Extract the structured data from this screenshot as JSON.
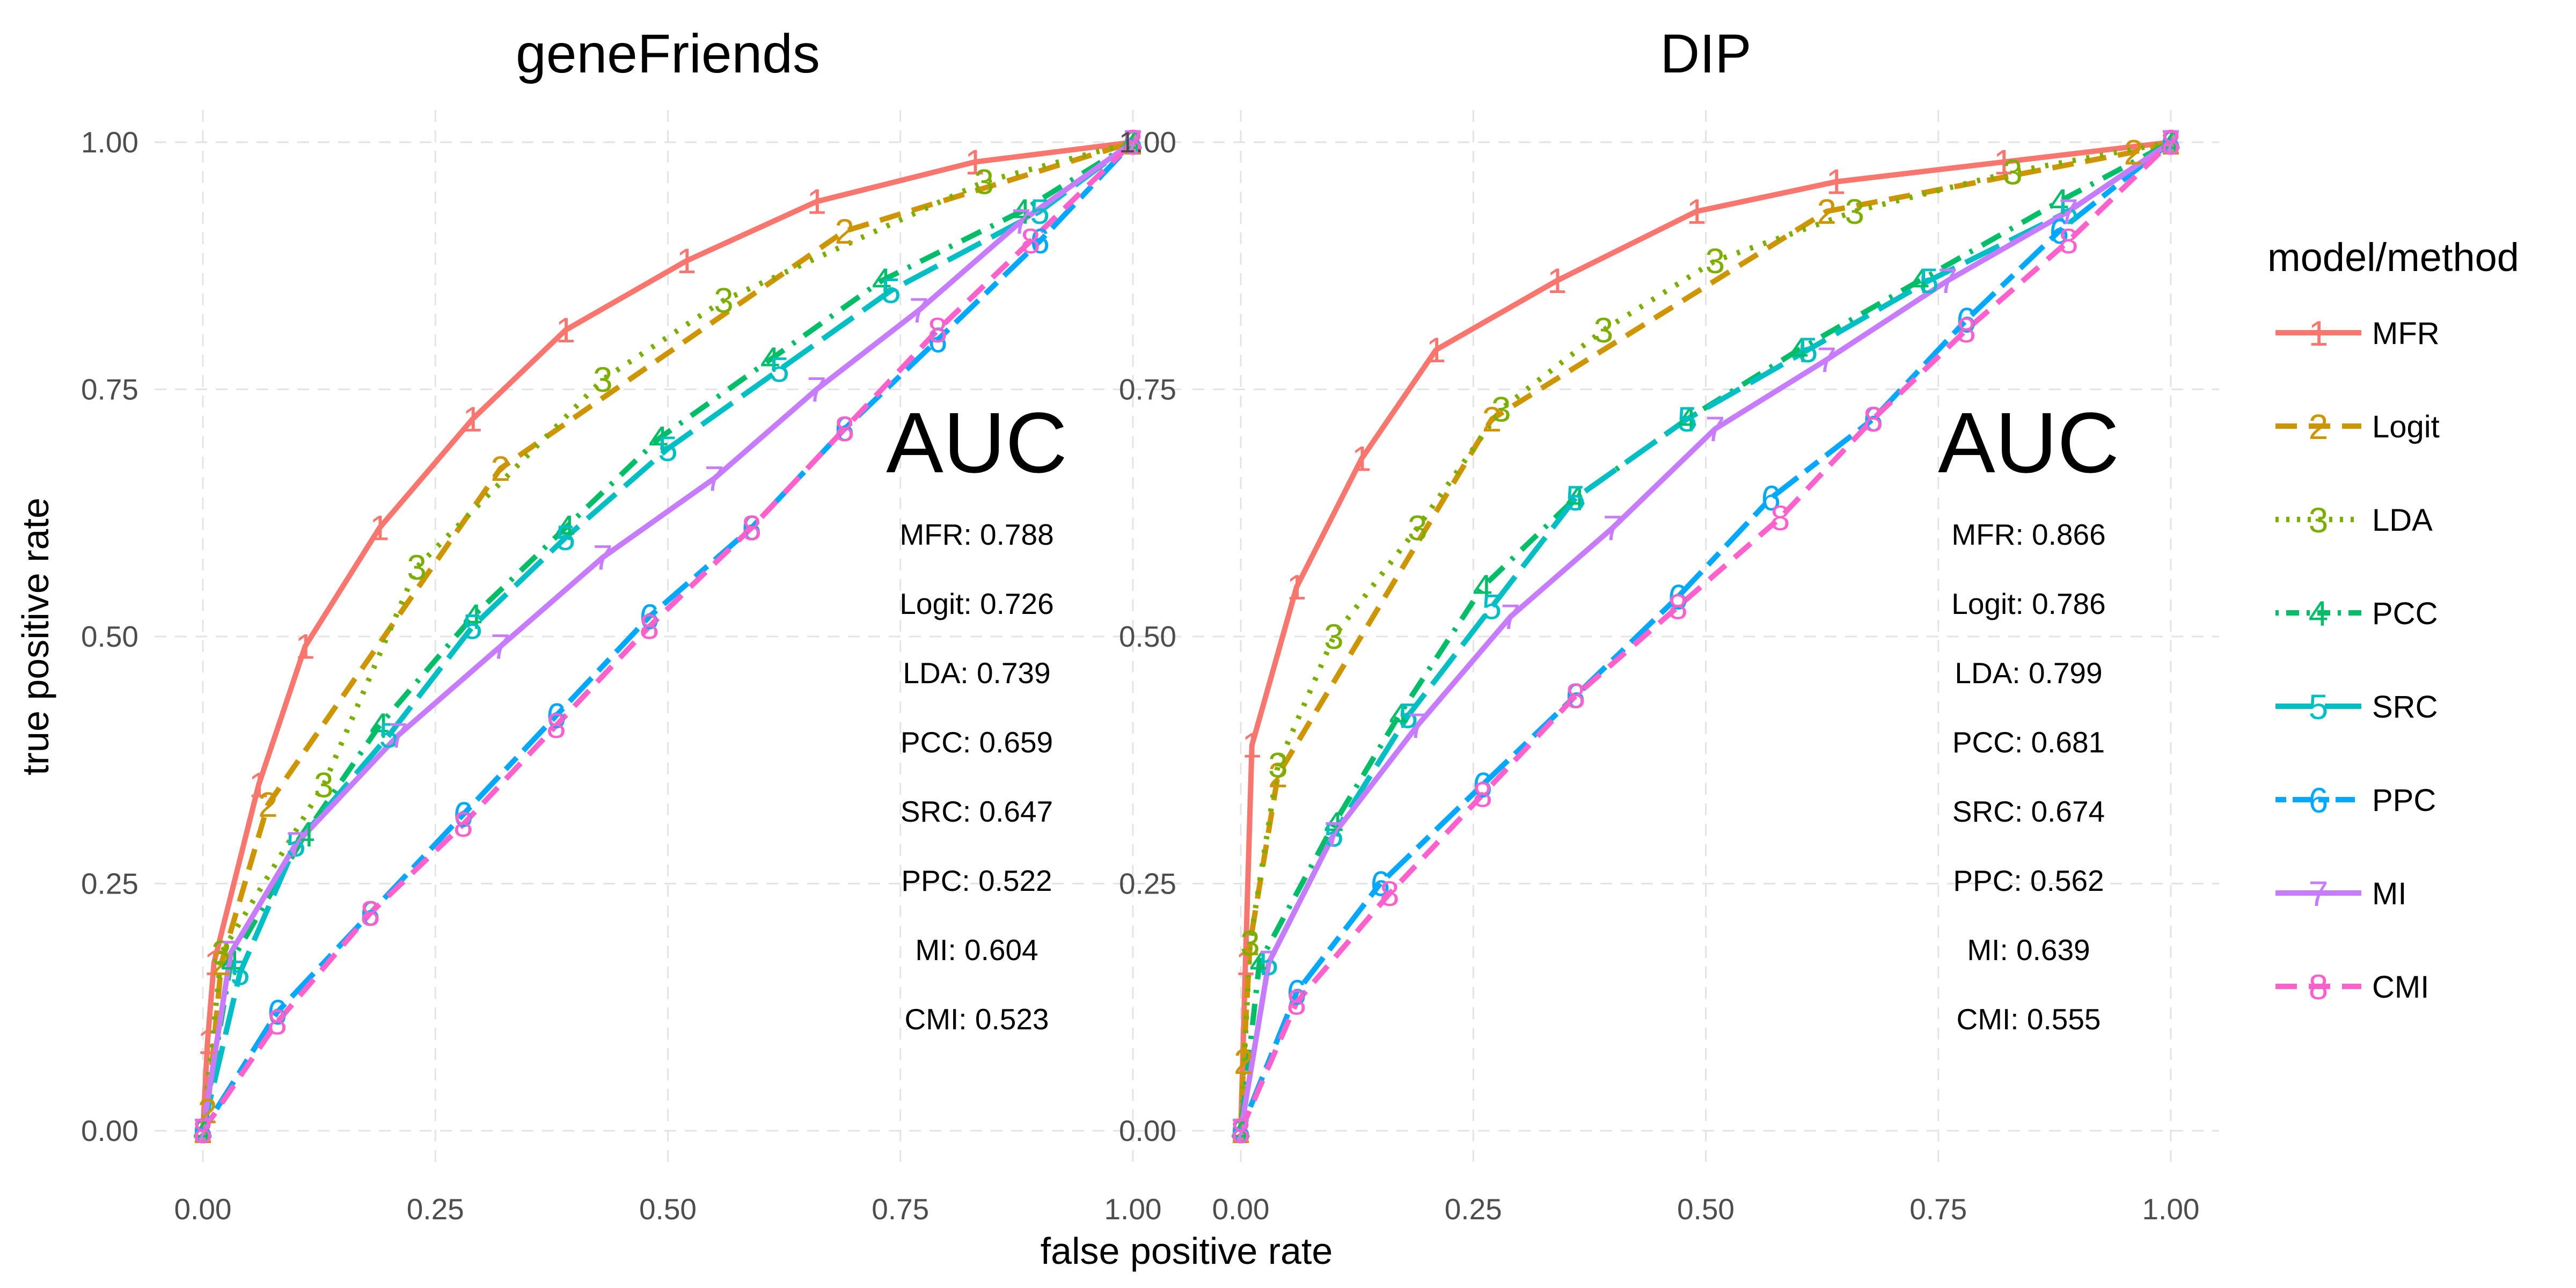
{
  "chart_data": {
    "type": "line",
    "xlabel": "false positive rate",
    "ylabel": "true positive rate",
    "xlim": [
      0,
      1
    ],
    "ylim": [
      0,
      1
    ],
    "x_ticks": [
      "0.00",
      "0.25",
      "0.50",
      "0.75",
      "1.00"
    ],
    "y_ticks": [
      "0.00",
      "0.25",
      "0.50",
      "0.75",
      "1.00"
    ],
    "grid": true,
    "legend": {
      "title": "model/method",
      "position": "right",
      "entries": [
        {
          "symbol": "1",
          "label": "MFR",
          "color": "#F8766D",
          "dash": "solid"
        },
        {
          "symbol": "2",
          "label": "Logit",
          "color": "#CD9600",
          "dash": "dashed"
        },
        {
          "symbol": "3",
          "label": "LDA",
          "color": "#7CAE00",
          "dash": "dotted"
        },
        {
          "symbol": "4",
          "label": "PCC",
          "color": "#00BE67",
          "dash": "dotdash"
        },
        {
          "symbol": "5",
          "label": "SRC",
          "color": "#00BFC4",
          "dash": "longdash"
        },
        {
          "symbol": "6",
          "label": "PPC",
          "color": "#00A9FF",
          "dash": "twodash"
        },
        {
          "symbol": "7",
          "label": "MI",
          "color": "#C77CFF",
          "dash": "solid"
        },
        {
          "symbol": "8",
          "label": "CMI",
          "color": "#FF61CC",
          "dash": "dashed"
        }
      ]
    },
    "panels": [
      {
        "title": "geneFriends",
        "auc_header": "AUC",
        "auc": [
          "MFR: 0.788",
          "Logit: 0.726",
          "LDA: 0.739",
          "PCC: 0.659",
          "SRC: 0.647",
          "PPC: 0.522",
          "MI: 0.604",
          "CMI: 0.523"
        ],
        "series": [
          {
            "name": "MFR",
            "x": [
              0,
              0.005,
              0.012,
              0.06,
              0.11,
              0.19,
              0.29,
              0.39,
              0.52,
              0.66,
              0.83,
              1.0
            ],
            "y": [
              0,
              0.09,
              0.17,
              0.35,
              0.49,
              0.61,
              0.72,
              0.81,
              0.88,
              0.94,
              0.98,
              1.0
            ]
          },
          {
            "name": "Logit",
            "x": [
              0,
              0.005,
              0.02,
              0.07,
              0.32,
              0.69,
              1.0
            ],
            "y": [
              0,
              0.02,
              0.17,
              0.33,
              0.67,
              0.91,
              1.0
            ]
          },
          {
            "name": "LDA",
            "x": [
              0,
              0.02,
              0.13,
              0.23,
              0.43,
              0.56,
              0.84,
              1.0
            ],
            "y": [
              0,
              0.18,
              0.35,
              0.57,
              0.76,
              0.84,
              0.96,
              1.0
            ]
          },
          {
            "name": "PCC",
            "x": [
              0,
              0.03,
              0.11,
              0.19,
              0.29,
              0.39,
              0.49,
              0.61,
              0.73,
              0.88,
              1.0
            ],
            "y": [
              0,
              0.17,
              0.3,
              0.41,
              0.52,
              0.61,
              0.7,
              0.78,
              0.86,
              0.93,
              1.0
            ]
          },
          {
            "name": "SRC",
            "x": [
              0,
              0.04,
              0.1,
              0.2,
              0.29,
              0.39,
              0.5,
              0.62,
              0.74,
              0.9,
              1.0
            ],
            "y": [
              0,
              0.16,
              0.29,
              0.4,
              0.51,
              0.6,
              0.69,
              0.77,
              0.85,
              0.93,
              1.0
            ]
          },
          {
            "name": "PPC",
            "x": [
              0,
              0.08,
              0.18,
              0.28,
              0.38,
              0.48,
              0.59,
              0.69,
              0.79,
              0.9,
              1.0
            ],
            "y": [
              0,
              0.12,
              0.22,
              0.32,
              0.42,
              0.52,
              0.61,
              0.71,
              0.8,
              0.9,
              1.0
            ]
          },
          {
            "name": "MI",
            "x": [
              0,
              0.03,
              0.1,
              0.21,
              0.32,
              0.43,
              0.55,
              0.66,
              0.77,
              0.88,
              1.0
            ],
            "y": [
              0,
              0.18,
              0.29,
              0.4,
              0.49,
              0.58,
              0.66,
              0.75,
              0.83,
              0.92,
              1.0
            ]
          },
          {
            "name": "CMI",
            "x": [
              0,
              0.08,
              0.18,
              0.28,
              0.38,
              0.48,
              0.59,
              0.69,
              0.79,
              0.89,
              1.0
            ],
            "y": [
              0,
              0.11,
              0.22,
              0.31,
              0.41,
              0.51,
              0.61,
              0.71,
              0.81,
              0.9,
              1.0
            ]
          }
        ]
      },
      {
        "title": "DIP",
        "auc_header": "AUC",
        "auc": [
          "MFR: 0.866",
          "Logit: 0.786",
          "LDA: 0.799",
          "PCC: 0.681",
          "SRC: 0.674",
          "PPC: 0.562",
          "MI: 0.639",
          "CMI: 0.555"
        ],
        "series": [
          {
            "name": "MFR",
            "x": [
              0,
              0.005,
              0.012,
              0.06,
              0.13,
              0.21,
              0.34,
              0.49,
              0.64,
              0.82,
              1.0
            ],
            "y": [
              0,
              0.17,
              0.39,
              0.55,
              0.68,
              0.79,
              0.86,
              0.93,
              0.96,
              0.98,
              1.0
            ]
          },
          {
            "name": "Logit",
            "x": [
              0,
              0.003,
              0.01,
              0.04,
              0.27,
              0.63,
              0.96,
              1.0
            ],
            "y": [
              0,
              0.07,
              0.19,
              0.36,
              0.72,
              0.93,
              0.99,
              1.0
            ]
          },
          {
            "name": "LDA",
            "x": [
              0,
              0.01,
              0.04,
              0.1,
              0.19,
              0.28,
              0.39,
              0.51,
              0.66,
              0.83,
              1.0
            ],
            "y": [
              0,
              0.19,
              0.37,
              0.5,
              0.61,
              0.73,
              0.81,
              0.88,
              0.93,
              0.97,
              1.0
            ]
          },
          {
            "name": "PCC",
            "x": [
              0,
              0.02,
              0.1,
              0.17,
              0.26,
              0.36,
              0.48,
              0.6,
              0.73,
              0.88,
              1.0
            ],
            "y": [
              0,
              0.17,
              0.31,
              0.42,
              0.55,
              0.64,
              0.72,
              0.79,
              0.86,
              0.94,
              1.0
            ]
          },
          {
            "name": "SRC",
            "x": [
              0,
              0.03,
              0.1,
              0.18,
              0.27,
              0.36,
              0.48,
              0.61,
              0.74,
              0.89,
              1.0
            ],
            "y": [
              0,
              0.17,
              0.3,
              0.42,
              0.53,
              0.64,
              0.72,
              0.79,
              0.86,
              0.93,
              1.0
            ]
          },
          {
            "name": "PPC",
            "x": [
              0,
              0.06,
              0.15,
              0.26,
              0.36,
              0.47,
              0.57,
              0.68,
              0.78,
              0.88,
              1.0
            ],
            "y": [
              0,
              0.14,
              0.25,
              0.35,
              0.44,
              0.54,
              0.64,
              0.72,
              0.82,
              0.91,
              1.0
            ]
          },
          {
            "name": "MI",
            "x": [
              0,
              0.03,
              0.1,
              0.19,
              0.29,
              0.4,
              0.51,
              0.63,
              0.76,
              0.89,
              1.0
            ],
            "y": [
              0,
              0.17,
              0.3,
              0.41,
              0.52,
              0.61,
              0.71,
              0.78,
              0.86,
              0.93,
              1.0
            ]
          },
          {
            "name": "CMI",
            "x": [
              0,
              0.06,
              0.16,
              0.26,
              0.36,
              0.47,
              0.58,
              0.68,
              0.78,
              0.89,
              1.0
            ],
            "y": [
              0,
              0.13,
              0.24,
              0.34,
              0.44,
              0.53,
              0.62,
              0.72,
              0.81,
              0.9,
              1.0
            ]
          }
        ]
      }
    ]
  }
}
